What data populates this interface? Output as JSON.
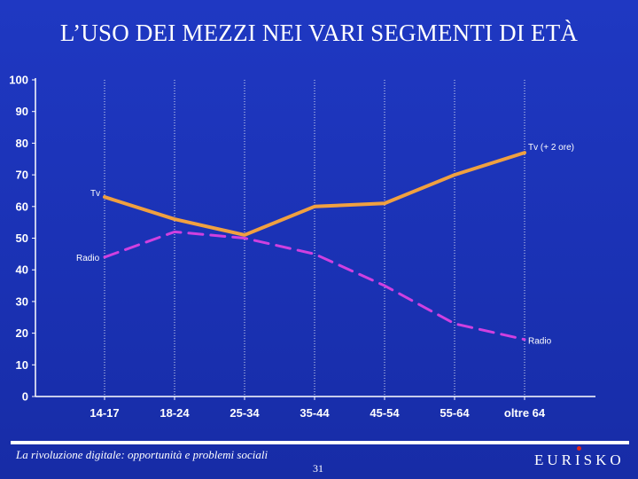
{
  "slide": {
    "title": "L’USO DEI MEZZI NEI VARI SEGMENTI DI ETÀ",
    "footer_text": "La rivoluzione digitale: opportunità e problemi sociali",
    "page_number": "31",
    "brand": "EURISKO"
  },
  "colors": {
    "background": "#1a33b8",
    "tv_line": "#f0a040",
    "radio_line": "#d040e0",
    "axis": "#ffffff",
    "brand_dot": "#e0261c"
  },
  "chart_data": {
    "type": "line",
    "title": "",
    "xlabel": "",
    "ylabel": "",
    "categories": [
      "14-17",
      "18-24",
      "25-34",
      "35-44",
      "45-54",
      "55-64",
      "oltre 64"
    ],
    "y_ticks": [
      "0",
      "10",
      "20",
      "30",
      "40",
      "50",
      "60",
      "70",
      "80",
      "90",
      "100"
    ],
    "ylim": [
      0,
      100
    ],
    "grid": "vertical dotted lines",
    "legend": "none",
    "series": [
      {
        "name": "Tv",
        "values": [
          63,
          56,
          51,
          60,
          61,
          70,
          77
        ]
      },
      {
        "name": "Radio",
        "values": [
          44,
          52,
          50,
          45,
          35,
          23,
          18
        ]
      }
    ],
    "annotations": [
      {
        "text": "Tv",
        "series": "Tv",
        "at": "14-17"
      },
      {
        "text": "Tv (+ 2 ore)",
        "series": "Tv",
        "at": "oltre 64"
      },
      {
        "text": "Radio",
        "series": "Radio",
        "at": "14-17"
      },
      {
        "text": "Radio",
        "series": "Radio",
        "at": "oltre 64"
      }
    ]
  }
}
